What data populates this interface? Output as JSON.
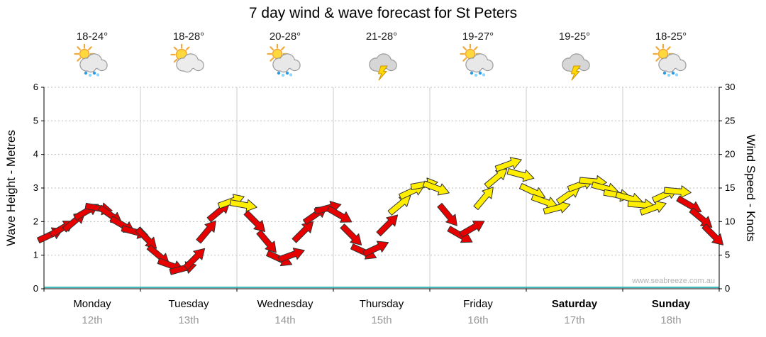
{
  "title": "7 day wind & wave forecast for St Peters",
  "watermark": "www.seabreeze.com.au",
  "days": [
    {
      "name": "Monday",
      "date": "12th",
      "temp": "18-24°",
      "icon": "sun-cloud-rain",
      "bold": false
    },
    {
      "name": "Tuesday",
      "date": "13th",
      "temp": "18-28°",
      "icon": "sun-cloud",
      "bold": false
    },
    {
      "name": "Wednesday",
      "date": "14th",
      "temp": "20-28°",
      "icon": "sun-cloud-rain",
      "bold": false
    },
    {
      "name": "Thursday",
      "date": "15th",
      "temp": "21-28°",
      "icon": "storm",
      "bold": false
    },
    {
      "name": "Friday",
      "date": "16th",
      "temp": "19-27°",
      "icon": "sun-cloud-rain",
      "bold": false
    },
    {
      "name": "Saturday",
      "date": "17th",
      "temp": "19-25°",
      "icon": "storm",
      "bold": true
    },
    {
      "name": "Sunday",
      "date": "18th",
      "temp": "18-25°",
      "icon": "sun-cloud-rain",
      "bold": true
    }
  ],
  "colors": {
    "arrow_red": "#e60000",
    "arrow_yellow": "#ffee00",
    "arrow_outline": "#333333",
    "grid": "#bdbdbd",
    "day_line": "#cccccc",
    "axis": "#000000",
    "teal_line": "#00a3a3",
    "date_text": "#979797"
  },
  "chart_data": {
    "type": "wind-arrows",
    "title": "7 day wind & wave forecast for St Peters",
    "x_categories": [
      "Monday 12th",
      "Tuesday 13th",
      "Wednesday 14th",
      "Thursday 15th",
      "Friday 16th",
      "Saturday 17th",
      "Sunday 18th"
    ],
    "points_per_day": 8,
    "grid": true,
    "y_axis_left": {
      "label": "Wave Height - Metres",
      "min": 0,
      "max": 6,
      "step": 1
    },
    "y_axis_right": {
      "label": "Wind Speed - Knots",
      "min": 0,
      "max": 30,
      "step": 5
    },
    "wind_speed_knots": [
      8,
      9,
      10,
      11.5,
      12,
      11,
      9.5,
      8.5,
      7.5,
      5,
      3.5,
      3,
      4.5,
      8.5,
      11.5,
      13,
      12.5,
      10,
      7,
      4.5,
      5,
      8.5,
      11,
      12,
      11,
      8,
      5.5,
      6,
      9.5,
      12.5,
      14.5,
      15.5,
      15,
      11,
      8,
      9,
      13.5,
      16.5,
      18.5,
      17,
      14.5,
      13,
      12,
      14,
      15.5,
      16,
      15,
      14,
      13.5,
      12.5,
      12,
      14,
      14.5,
      12.5,
      10.5,
      8
    ],
    "arrow_direction_deg": [
      25,
      30,
      40,
      30,
      -10,
      -35,
      -30,
      -15,
      -45,
      -40,
      -20,
      15,
      45,
      50,
      40,
      20,
      -10,
      -45,
      -50,
      -25,
      20,
      45,
      35,
      15,
      -30,
      -45,
      -25,
      25,
      45,
      40,
      25,
      10,
      -20,
      -50,
      -30,
      30,
      50,
      40,
      20,
      -15,
      -25,
      -20,
      15,
      35,
      20,
      -5,
      -15,
      -10,
      -15,
      -5,
      20,
      25,
      -5,
      -30,
      -40,
      -45
    ],
    "arrow_color": [
      "red",
      "red",
      "red",
      "red",
      "red",
      "red",
      "red",
      "red",
      "red",
      "red",
      "red",
      "red",
      "red",
      "red",
      "red",
      "yellow",
      "yellow",
      "red",
      "red",
      "red",
      "red",
      "red",
      "red",
      "red",
      "red",
      "red",
      "red",
      "red",
      "red",
      "yellow",
      "yellow",
      "yellow",
      "yellow",
      "red",
      "red",
      "red",
      "yellow",
      "yellow",
      "yellow",
      "yellow",
      "yellow",
      "yellow",
      "yellow",
      "yellow",
      "yellow",
      "yellow",
      "yellow",
      "yellow",
      "yellow",
      "yellow",
      "yellow",
      "yellow",
      "yellow",
      "red",
      "red",
      "red"
    ]
  }
}
